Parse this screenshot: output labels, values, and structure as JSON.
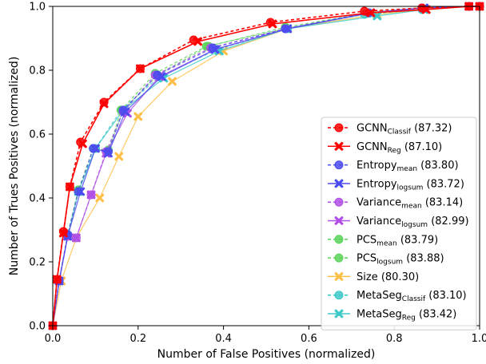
{
  "chart_data": {
    "type": "line",
    "title": "",
    "xlabel": "Number of False Positives (normalized)",
    "ylabel": "Number of Trues Positives (normalized)",
    "xlim": [
      0.0,
      1.0
    ],
    "ylim": [
      0.0,
      1.0
    ],
    "xticks": [
      "0.0",
      "0.2",
      "0.4",
      "0.6",
      "0.8",
      "1.0"
    ],
    "yticks": [
      "0.0",
      "0.2",
      "0.4",
      "0.6",
      "0.8",
      "1.0"
    ],
    "grid": false,
    "legend_position": "lower-right",
    "series": [
      {
        "name": "GCNN",
        "subscript": "Classif",
        "score": "(87.32)",
        "color": "#ff0000",
        "dashed": true,
        "marker": "circle",
        "x": [
          0.0,
          0.01,
          0.025,
          0.04,
          0.065,
          0.12,
          0.205,
          0.33,
          0.51,
          0.73,
          0.865,
          0.975,
          1.0
        ],
        "y": [
          0.0,
          0.145,
          0.295,
          0.435,
          0.575,
          0.7,
          0.805,
          0.895,
          0.95,
          0.985,
          0.995,
          1.0,
          1.0
        ]
      },
      {
        "name": "GCNN",
        "subscript": "Reg",
        "score": "(87.10)",
        "color": "#ff0000",
        "dashed": false,
        "marker": "x",
        "x": [
          0.0,
          0.01,
          0.025,
          0.04,
          0.07,
          0.12,
          0.205,
          0.34,
          0.515,
          0.745,
          0.875,
          0.975,
          1.0
        ],
        "y": [
          0.0,
          0.145,
          0.29,
          0.435,
          0.57,
          0.695,
          0.805,
          0.89,
          0.945,
          0.98,
          0.99,
          1.0,
          1.0
        ]
      },
      {
        "name": "Entropy",
        "subscript": "mean",
        "score": "(83.80)",
        "color": "#4b4bf0",
        "dashed": true,
        "marker": "circle",
        "x": [
          0.0,
          0.015,
          0.035,
          0.06,
          0.095,
          0.13,
          0.165,
          0.245,
          0.375,
          0.545,
          0.74,
          0.865,
          0.975,
          1.0
        ],
        "y": [
          0.0,
          0.14,
          0.285,
          0.42,
          0.555,
          0.545,
          0.675,
          0.785,
          0.87,
          0.93,
          0.98,
          0.995,
          1.0,
          1.0
        ]
      },
      {
        "name": "Entropy",
        "subscript": "logsum",
        "score": "(83.72)",
        "color": "#4b4bf0",
        "dashed": false,
        "marker": "x",
        "x": [
          0.0,
          0.015,
          0.035,
          0.065,
          0.1,
          0.13,
          0.17,
          0.255,
          0.38,
          0.55,
          0.745,
          0.87,
          0.975,
          1.0
        ],
        "y": [
          0.0,
          0.14,
          0.28,
          0.42,
          0.555,
          0.54,
          0.67,
          0.78,
          0.865,
          0.93,
          0.98,
          0.995,
          1.0,
          1.0
        ]
      },
      {
        "name": "Variance",
        "subscript": "mean",
        "score": "(83.14)",
        "color": "#b04fe6",
        "dashed": true,
        "marker": "circle",
        "x": [
          0.0,
          0.015,
          0.035,
          0.055,
          0.09,
          0.125,
          0.165,
          0.24,
          0.37,
          0.545,
          0.74,
          0.865,
          0.975,
          1.0
        ],
        "y": [
          0.0,
          0.14,
          0.28,
          0.275,
          0.41,
          0.545,
          0.67,
          0.785,
          0.87,
          0.93,
          0.98,
          0.995,
          1.0,
          1.0
        ]
      },
      {
        "name": "Variance",
        "subscript": "logsum",
        "score": "(82.99)",
        "color": "#b04fe6",
        "dashed": false,
        "marker": "x",
        "x": [
          0.0,
          0.015,
          0.035,
          0.055,
          0.09,
          0.125,
          0.175,
          0.25,
          0.38,
          0.55,
          0.745,
          0.87,
          0.975,
          1.0
        ],
        "y": [
          0.0,
          0.14,
          0.28,
          0.275,
          0.41,
          0.54,
          0.665,
          0.78,
          0.865,
          0.93,
          0.98,
          0.995,
          1.0,
          1.0
        ]
      },
      {
        "name": "PCS",
        "subscript": "mean",
        "score": "(83.79)",
        "color": "#5ad35a",
        "dashed": true,
        "marker": "circle",
        "x": [
          0.0,
          0.015,
          0.035,
          0.06,
          0.095,
          0.13,
          0.16,
          0.24,
          0.36,
          0.545,
          0.74,
          0.865,
          0.975,
          1.0
        ],
        "y": [
          0.0,
          0.14,
          0.285,
          0.42,
          0.555,
          0.545,
          0.675,
          0.79,
          0.875,
          0.93,
          0.98,
          0.995,
          1.0,
          1.0
        ]
      },
      {
        "name": "PCS",
        "subscript": "logsum",
        "score": "(83.88)",
        "color": "#5ad35a",
        "dashed": true,
        "marker": "circle",
        "x": [
          0.0,
          0.015,
          0.035,
          0.06,
          0.095,
          0.13,
          0.165,
          0.245,
          0.365,
          0.545,
          0.74,
          0.865,
          0.975,
          1.0
        ],
        "y": [
          0.0,
          0.14,
          0.285,
          0.425,
          0.555,
          0.55,
          0.675,
          0.785,
          0.875,
          0.935,
          0.98,
          0.995,
          1.0,
          1.0
        ]
      },
      {
        "name": "Size",
        "subscript": "",
        "score": "(80.30)",
        "color": "#ffc04a",
        "dashed": false,
        "marker": "x",
        "x": [
          0.0,
          0.02,
          0.055,
          0.11,
          0.155,
          0.2,
          0.28,
          0.4,
          0.55,
          0.76,
          0.87,
          0.975,
          1.0
        ],
        "y": [
          0.0,
          0.14,
          0.275,
          0.4,
          0.53,
          0.655,
          0.765,
          0.86,
          0.93,
          0.975,
          0.99,
          1.0,
          1.0
        ]
      },
      {
        "name": "MetaSeg",
        "subscript": "Classif",
        "score": "(83.10)",
        "color": "#3ec9c9",
        "dashed": true,
        "marker": "circle",
        "x": [
          0.0,
          0.015,
          0.035,
          0.06,
          0.1,
          0.16,
          0.25,
          0.385,
          0.55,
          0.73,
          0.865,
          0.975,
          1.0
        ],
        "y": [
          0.0,
          0.14,
          0.285,
          0.425,
          0.555,
          0.675,
          0.78,
          0.865,
          0.93,
          0.975,
          0.99,
          1.0,
          1.0
        ]
      },
      {
        "name": "MetaSeg",
        "subscript": "Reg",
        "score": "(83.42)",
        "color": "#3ec9c9",
        "dashed": false,
        "marker": "x",
        "x": [
          0.0,
          0.015,
          0.035,
          0.06,
          0.1,
          0.165,
          0.26,
          0.39,
          0.55,
          0.76,
          0.87,
          0.975,
          1.0
        ],
        "y": [
          0.0,
          0.14,
          0.28,
          0.42,
          0.555,
          0.675,
          0.775,
          0.86,
          0.93,
          0.97,
          0.99,
          1.0,
          1.0
        ]
      }
    ]
  }
}
